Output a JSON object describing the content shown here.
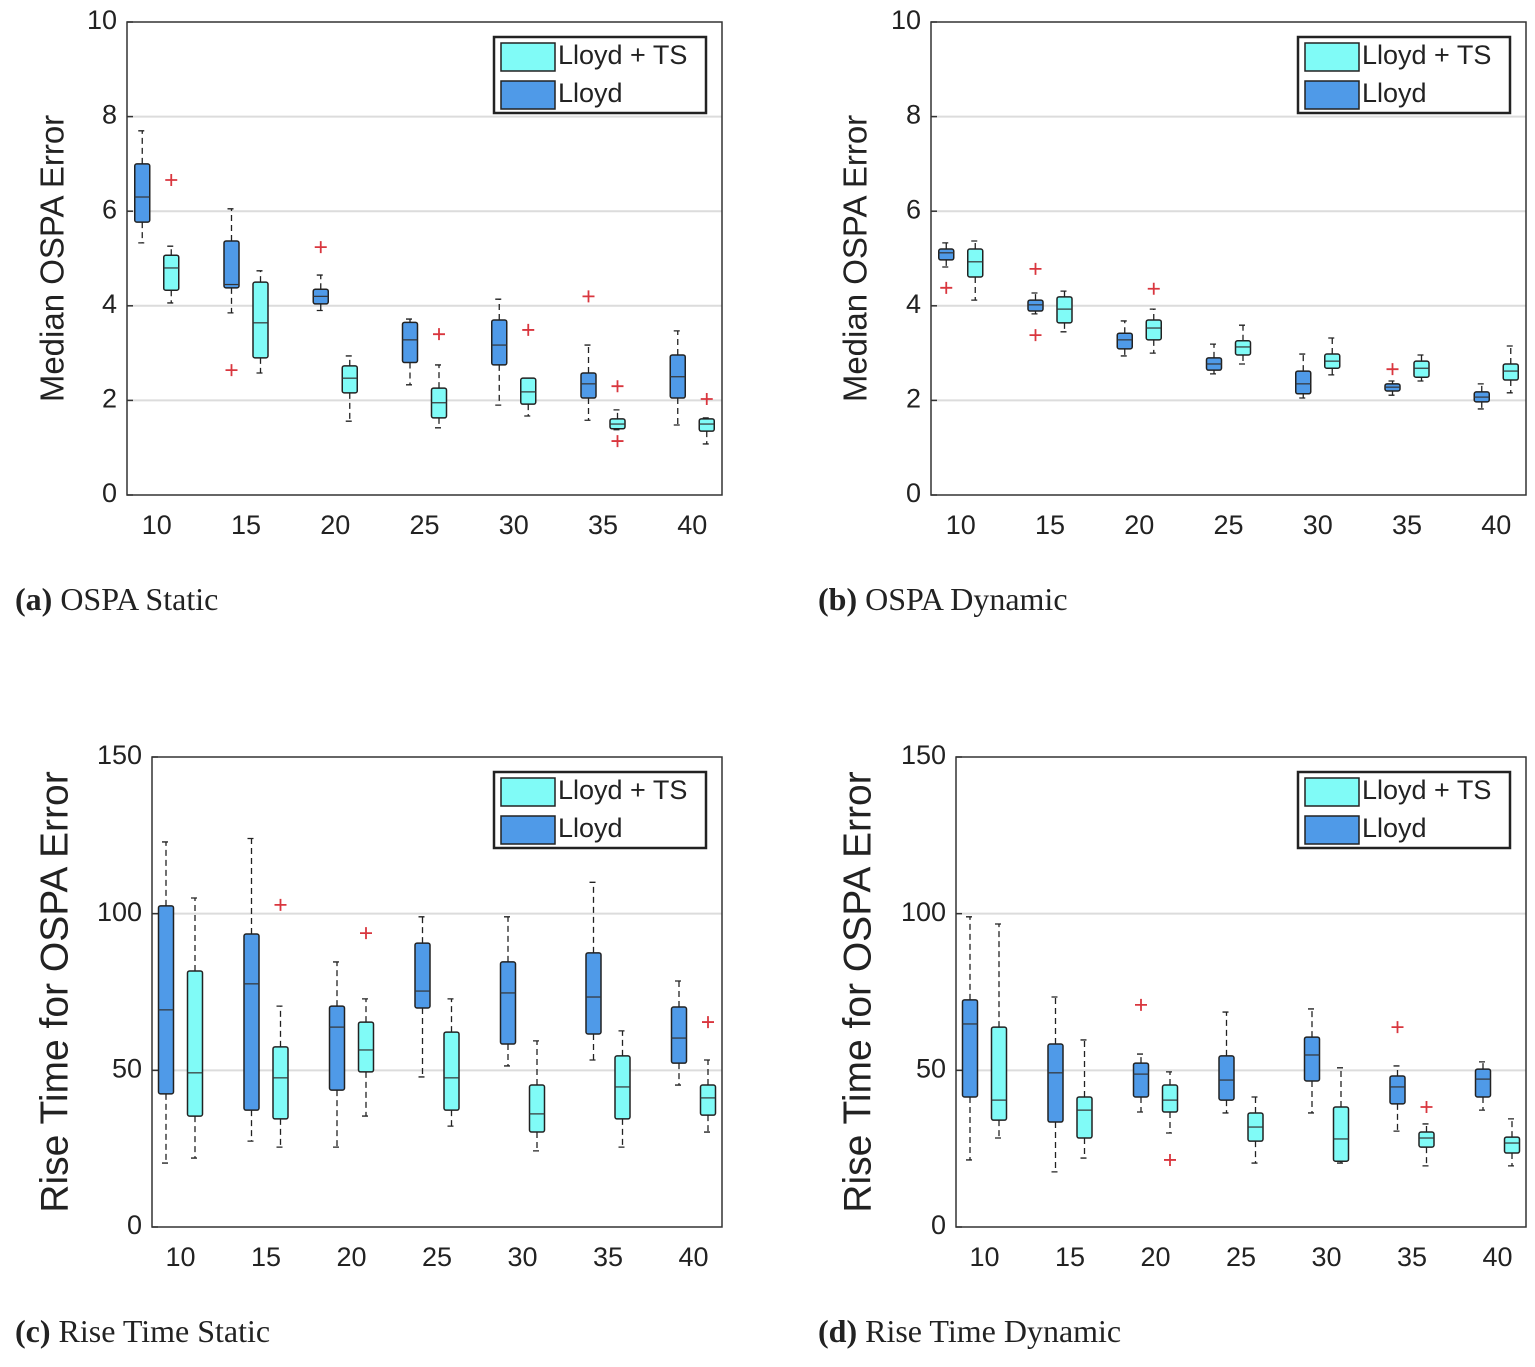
{
  "chart_data": [
    {
      "type": "box",
      "panel": "(a)",
      "caption": "OSPA Static",
      "ylabel": "Median OSPA Error",
      "categories": [
        "10",
        "15",
        "20",
        "25",
        "30",
        "35",
        "40"
      ],
      "ylim": [
        0,
        10
      ],
      "yticks": [
        0,
        2,
        4,
        6,
        8,
        10
      ],
      "grid": true,
      "legend": "upper right",
      "series": [
        {
          "name": "Lloyd + TS",
          "color": "#80fbf7",
          "low": [
            4.06,
            2.58,
            1.56,
            1.42,
            1.67,
            1.38,
            1.08
          ],
          "q1": [
            4.33,
            2.9,
            2.16,
            1.63,
            1.92,
            1.4,
            1.35
          ],
          "median": [
            4.8,
            3.64,
            2.47,
            1.95,
            2.18,
            1.5,
            1.5
          ],
          "q3": [
            5.07,
            4.5,
            2.73,
            2.26,
            2.47,
            1.61,
            1.61
          ],
          "high": [
            5.26,
            4.74,
            2.94,
            2.75,
            2.47,
            1.8,
            1.63
          ],
          "outliers": [
            [
              6.66
            ],
            [],
            [],
            [
              3.4
            ],
            [
              3.49
            ],
            [
              2.3,
              1.14
            ],
            [
              2.03
            ]
          ]
        },
        {
          "name": "Lloyd",
          "color": "#4f9ae8",
          "low": [
            5.33,
            3.85,
            3.9,
            2.33,
            1.9,
            1.58,
            1.48
          ],
          "q1": [
            5.77,
            4.38,
            4.04,
            2.8,
            2.75,
            2.05,
            2.05
          ],
          "median": [
            6.3,
            4.45,
            4.2,
            3.28,
            3.17,
            2.35,
            2.5
          ],
          "q3": [
            7.0,
            5.37,
            4.35,
            3.65,
            3.7,
            2.58,
            2.96
          ],
          "high": [
            7.7,
            6.05,
            4.65,
            3.72,
            4.14,
            3.17,
            3.47
          ],
          "outliers": [
            [],
            [
              2.64
            ],
            [
              5.24
            ],
            [],
            [],
            [
              4.2
            ],
            []
          ]
        }
      ]
    },
    {
      "type": "box",
      "panel": "(b)",
      "caption": "OSPA Dynamic",
      "ylabel": "Median OSPA Error",
      "categories": [
        "10",
        "15",
        "20",
        "25",
        "30",
        "35",
        "40"
      ],
      "ylim": [
        0,
        10
      ],
      "yticks": [
        0,
        2,
        4,
        6,
        8,
        10
      ],
      "grid": true,
      "legend": "upper right",
      "series": [
        {
          "name": "Lloyd + TS",
          "color": "#80fbf7",
          "low": [
            4.12,
            3.45,
            3.0,
            2.77,
            2.54,
            2.41,
            2.16
          ],
          "q1": [
            4.61,
            3.64,
            3.28,
            2.96,
            2.68,
            2.49,
            2.43
          ],
          "median": [
            4.93,
            3.93,
            3.53,
            3.13,
            2.83,
            2.68,
            2.62
          ],
          "q3": [
            5.2,
            4.19,
            3.7,
            3.26,
            2.98,
            2.83,
            2.77
          ],
          "high": [
            5.37,
            4.31,
            3.93,
            3.59,
            3.32,
            2.96,
            3.15
          ],
          "outliers": [
            [],
            [],
            [
              4.36
            ],
            [],
            [],
            [],
            []
          ]
        },
        {
          "name": "Lloyd",
          "color": "#4f9ae8",
          "low": [
            4.82,
            3.83,
            2.94,
            2.56,
            2.05,
            2.11,
            1.82
          ],
          "q1": [
            4.97,
            3.89,
            3.09,
            2.64,
            2.14,
            2.2,
            1.97
          ],
          "median": [
            5.12,
            4.02,
            3.28,
            2.77,
            2.35,
            2.28,
            2.07
          ],
          "q3": [
            5.2,
            4.12,
            3.42,
            2.9,
            2.62,
            2.35,
            2.18
          ],
          "high": [
            5.33,
            4.27,
            3.68,
            3.19,
            2.98,
            2.41,
            2.35
          ],
          "outliers": [
            [
              4.38
            ],
            [
              4.78,
              3.38
            ],
            [],
            [],
            [],
            [
              2.66
            ],
            []
          ]
        }
      ]
    },
    {
      "type": "box",
      "panel": "(c)",
      "caption": "Rise Time Static",
      "ylabel": "Rise Time for OSPA Error",
      "categories": [
        "10",
        "15",
        "20",
        "25",
        "30",
        "35",
        "40"
      ],
      "ylim": [
        0,
        150
      ],
      "yticks": [
        0,
        50,
        100,
        150
      ],
      "grid": true,
      "legend": "upper right",
      "series": [
        {
          "name": "Lloyd + TS",
          "color": "#80fbf7",
          "low": [
            22,
            25.5,
            35.4,
            32.2,
            24.3,
            25.5,
            30.3
          ],
          "q1": [
            35.4,
            34.5,
            49.5,
            37.3,
            30.3,
            34.5,
            35.7
          ],
          "median": [
            49.2,
            47.6,
            56.5,
            47.6,
            36.1,
            44.7,
            41.2
          ],
          "q3": [
            81.7,
            57.5,
            65.4,
            62.2,
            45.3,
            54.6,
            45.3
          ],
          "high": [
            105,
            70.5,
            72.8,
            72.8,
            59.4,
            62.6,
            53.3
          ],
          "outliers": [
            [],
            [
              102.8
            ],
            [
              93.8
            ],
            [],
            [],
            [],
            [
              65.4
            ]
          ]
        },
        {
          "name": "Lloyd",
          "color": "#4f9ae8",
          "low": [
            20.4,
            27.4,
            25.5,
            47.9,
            51.4,
            53.3,
            45.3
          ],
          "q1": [
            42.5,
            37.3,
            43.7,
            69.9,
            58.4,
            61.6,
            52.3
          ],
          "median": [
            69.3,
            77.6,
            63.8,
            75.3,
            74.7,
            73.4,
            60.3
          ],
          "q3": [
            102.5,
            93.5,
            70.5,
            90.6,
            84.6,
            87.5,
            70.2
          ],
          "high": [
            122.9,
            124,
            84.6,
            99,
            99,
            110,
            78.5
          ],
          "outliers": [
            [],
            [],
            [],
            [],
            [],
            [],
            []
          ]
        }
      ]
    },
    {
      "type": "box",
      "panel": "(d)",
      "caption": "Rise Time Dynamic",
      "ylabel": "Rise Time for OSPA Error",
      "categories": [
        "10",
        "15",
        "20",
        "25",
        "30",
        "35",
        "40"
      ],
      "ylim": [
        0,
        150
      ],
      "yticks": [
        0,
        50,
        100,
        150
      ],
      "grid": true,
      "legend": "upper right",
      "series": [
        {
          "name": "Lloyd + TS",
          "color": "#80fbf7",
          "low": [
            28.4,
            22,
            30,
            20.4,
            20.4,
            19.5,
            19.5
          ],
          "q1": [
            34.1,
            28.4,
            36.7,
            27.4,
            21,
            25.5,
            23.6
          ],
          "median": [
            40.5,
            37.3,
            40.5,
            31.9,
            28.1,
            28.4,
            26.8
          ],
          "q3": [
            63.8,
            41.5,
            45.3,
            36.4,
            38.3,
            30.3,
            28.7
          ],
          "high": [
            96.7,
            59.7,
            49.5,
            41.5,
            50.8,
            32.9,
            34.5
          ],
          "outliers": [
            [],
            [],
            [
              21.4
            ],
            [],
            [],
            [
              38.3
            ],
            []
          ]
        },
        {
          "name": "Lloyd",
          "color": "#4f9ae8",
          "low": [
            21.4,
            17.6,
            36.7,
            36.4,
            36.4,
            30.6,
            37.3
          ],
          "q1": [
            41.5,
            33.5,
            41.5,
            40.5,
            46.6,
            39.3,
            41.5
          ],
          "median": [
            64.8,
            49.2,
            48.8,
            46.9,
            54.9,
            44.7,
            47.2
          ],
          "q3": [
            72.5,
            58.4,
            52.3,
            54.6,
            60.6,
            48.2,
            50.4
          ],
          "high": [
            99,
            73.4,
            55.2,
            68.6,
            69.6,
            51.4,
            52.7
          ],
          "outliers": [
            [],
            [],
            [
              70.9
            ],
            [],
            [],
            [
              63.8
            ],
            []
          ]
        }
      ]
    }
  ]
}
